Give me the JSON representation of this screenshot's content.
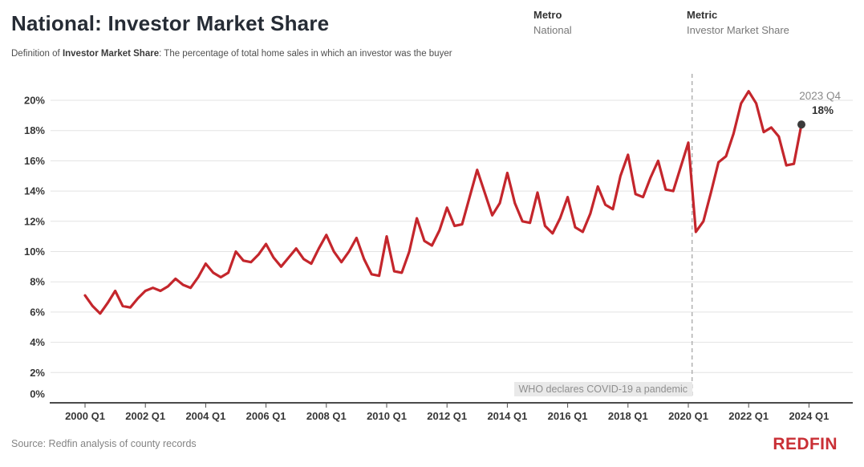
{
  "header": {
    "title": "National: Investor Market Share",
    "definition_prefix": "Definition of ",
    "definition_term": "Investor Market Share",
    "definition_rest": ": The percentage of total home sales in which an investor was the buyer"
  },
  "filters": {
    "metro_label": "Metro",
    "metro_value": "National",
    "metric_label": "Metric",
    "metric_value": "Investor Market Share"
  },
  "chart_data": {
    "type": "line",
    "title": "National: Investor Market Share",
    "xlabel": "",
    "ylabel": "",
    "grid": "horizontal",
    "start_quarter": "2000 Q1",
    "end_quarter": "2023 Q4",
    "frequency": "quarterly",
    "ylim": [
      0,
      21.7
    ],
    "x_axis": {
      "tick_labels": [
        "2000 Q1",
        "2002 Q1",
        "2004 Q1",
        "2006 Q1",
        "2008 Q1",
        "2010 Q1",
        "2012 Q1",
        "2014 Q1",
        "2016 Q1",
        "2018 Q1",
        "2020 Q1",
        "2022 Q1",
        "2024 Q1"
      ]
    },
    "y_axis": {
      "tick_values": [
        0,
        2,
        4,
        6,
        8,
        10,
        12,
        14,
        16,
        18,
        20
      ],
      "tick_labels": [
        "0%",
        "2%",
        "4%",
        "6%",
        "8%",
        "10%",
        "12%",
        "14%",
        "16%",
        "18%",
        "20%"
      ]
    },
    "series": [
      {
        "name": "Investor Market Share",
        "color": "#c4262c",
        "values": [
          7.1,
          6.4,
          5.9,
          6.6,
          7.4,
          6.4,
          6.3,
          6.9,
          7.4,
          7.6,
          7.4,
          7.7,
          8.2,
          7.8,
          7.6,
          8.3,
          9.2,
          8.6,
          8.3,
          8.6,
          10.0,
          9.4,
          9.3,
          9.8,
          10.5,
          9.6,
          9.0,
          9.6,
          10.2,
          9.5,
          9.2,
          10.2,
          11.1,
          10.0,
          9.3,
          10.0,
          10.9,
          9.5,
          8.5,
          8.4,
          11.0,
          8.7,
          8.6,
          10.0,
          12.2,
          10.7,
          10.4,
          11.4,
          12.9,
          11.7,
          11.8,
          13.6,
          15.4,
          13.9,
          12.4,
          13.2,
          15.2,
          13.2,
          12.0,
          11.9,
          13.9,
          11.7,
          11.2,
          12.2,
          13.6,
          11.6,
          11.3,
          12.5,
          14.3,
          13.1,
          12.8,
          15.0,
          16.4,
          13.8,
          13.6,
          14.9,
          16.0,
          14.1,
          14.0,
          15.6,
          17.2,
          11.3,
          12.0,
          13.9,
          15.9,
          16.3,
          17.8,
          19.8,
          20.6,
          19.8,
          17.9,
          18.2,
          17.6,
          15.7,
          15.8,
          18.4
        ]
      }
    ],
    "annotations": {
      "covid_line": {
        "x_quarter": "2020 Q1",
        "x_index": 80.5,
        "label": "WHO declares COVID-19 a pandemic"
      },
      "end_point": {
        "x_quarter": "2023 Q4",
        "x_index": 95,
        "value": 18.4,
        "label_line1": "2023 Q4",
        "label_line2": "18%",
        "dot_color": "#3b3b3b"
      }
    }
  },
  "footer": {
    "source": "Source: Redfin analysis of county records",
    "logo": "REDFIN"
  }
}
